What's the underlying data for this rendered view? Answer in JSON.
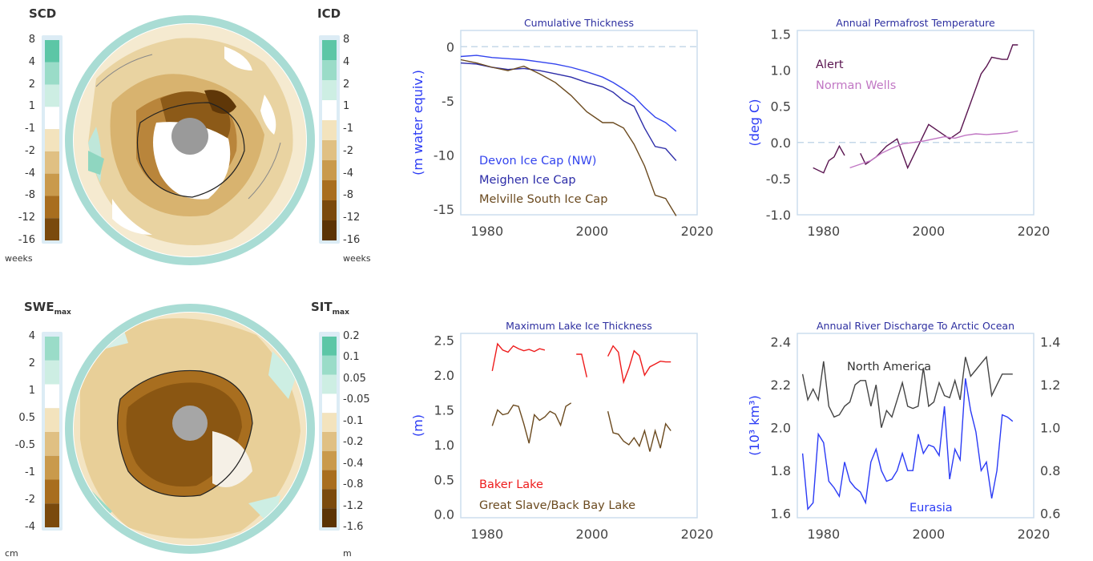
{
  "maps": {
    "top": {
      "left_title": "SCD",
      "right_title": "ICD",
      "left_unit": "weeks",
      "right_unit": "weeks",
      "left_ticks": [
        "8",
        "4",
        "2",
        "1",
        "-1",
        "-2",
        "-4",
        "-8",
        "-12",
        "-16"
      ],
      "right_ticks": [
        "8",
        "4",
        "2",
        "1",
        "-1",
        "-2",
        "-4",
        "-8",
        "-12",
        "-16"
      ]
    },
    "bottom": {
      "left_title_main": "SWE",
      "left_title_sub": "max",
      "right_title_main": "SIT",
      "right_title_sub": "max",
      "left_unit": "cm",
      "right_unit": "m",
      "left_ticks": [
        "4",
        "2",
        "1",
        "0.5",
        "-0.5",
        "-1",
        "-2",
        "-4"
      ],
      "right_ticks": [
        "0.2",
        "0.1",
        "0.05",
        "-0.05",
        "-0.1",
        "-0.2",
        "-0.4",
        "-0.8",
        "-1.2",
        "-1.6"
      ]
    },
    "colors": {
      "snow_scale": [
        "#5cc6a6",
        "#9adcc8",
        "#cdeee3",
        "#ffffff",
        "#f3e3bd",
        "#e0c083",
        "#c99a4c",
        "#a86e1f",
        "#7a4a0d"
      ],
      "ice_scale": [
        "#5cc6a6",
        "#9adcc8",
        "#cdeee3",
        "#ffffff",
        "#f3e3bd",
        "#e0c083",
        "#c99a4c",
        "#a86e1f",
        "#7a4a0d",
        "#5a3305"
      ],
      "ring": "#a9dcd4",
      "pole": "#9a9a9a"
    }
  },
  "chart_data": [
    {
      "type": "line",
      "title": "Cumulative Thickness",
      "xlabel": "",
      "ylabel": "(m water equiv.)",
      "xlim": [
        1975,
        2020
      ],
      "ylim": [
        -15.5,
        1.5
      ],
      "xticks": [
        1980,
        2000,
        2020
      ],
      "yticks": [
        0,
        -5,
        -10,
        -15
      ],
      "zero_line": true,
      "series": [
        {
          "name": "Devon Ice Cap (NW)",
          "color": "#3344ee",
          "x": [
            1975,
            1978,
            1981,
            1984,
            1987,
            1990,
            1993,
            1996,
            1999,
            2002,
            2004,
            2006,
            2008,
            2010,
            2012,
            2014,
            2016
          ],
          "y": [
            -0.9,
            -0.8,
            -1.0,
            -1.1,
            -1.2,
            -1.4,
            -1.6,
            -1.9,
            -2.3,
            -2.8,
            -3.3,
            -3.9,
            -4.6,
            -5.6,
            -6.5,
            -7.0,
            -7.8
          ]
        },
        {
          "name": "Meighen Ice Cap",
          "color": "#2c2ca8",
          "x": [
            1975,
            1978,
            1981,
            1984,
            1987,
            1990,
            1993,
            1996,
            1999,
            2002,
            2004,
            2006,
            2008,
            2010,
            2012,
            2014,
            2016
          ],
          "y": [
            -1.5,
            -1.6,
            -1.9,
            -2.1,
            -2.0,
            -2.2,
            -2.5,
            -2.8,
            -3.3,
            -3.7,
            -4.2,
            -5.0,
            -5.5,
            -7.5,
            -9.2,
            -9.4,
            -10.5
          ]
        },
        {
          "name": "Melville South Ice Cap",
          "color": "#6b4a1f",
          "x": [
            1975,
            1978,
            1981,
            1984,
            1987,
            1990,
            1993,
            1996,
            1999,
            2002,
            2004,
            2006,
            2008,
            2010,
            2012,
            2014,
            2016
          ],
          "y": [
            -1.2,
            -1.5,
            -1.9,
            -2.2,
            -1.8,
            -2.5,
            -3.3,
            -4.5,
            -6.0,
            -7.0,
            -7.0,
            -7.5,
            -9.0,
            -11.0,
            -13.7,
            -14.0,
            -15.6
          ]
        }
      ]
    },
    {
      "type": "line",
      "title": "Annual Permafrost Temperature",
      "xlabel": "",
      "ylabel": "(deg C)",
      "xlim": [
        1975,
        2020
      ],
      "ylim": [
        -1.0,
        1.55
      ],
      "xticks": [
        1980,
        2000,
        2020
      ],
      "yticks": [
        1.5,
        1.0,
        0.5,
        0.0,
        -0.5,
        -1.0
      ],
      "zero_line": true,
      "series": [
        {
          "name": "Alert",
          "color": "#5a1550",
          "segments": [
            {
              "x": [
                1978,
                1980,
                1981,
                1982,
                1983,
                1984
              ],
              "y": [
                -0.35,
                -0.42,
                -0.25,
                -0.2,
                -0.05,
                -0.18
              ]
            },
            {
              "x": [
                1987,
                1988,
                1990,
                1992,
                1994,
                1996,
                1998,
                2000,
                2002,
                2004,
                2006,
                2008,
                2010,
                2011,
                2012,
                2014,
                2015,
                2016,
                2017
              ],
              "y": [
                -0.15,
                -0.3,
                -0.2,
                -0.05,
                0.05,
                -0.35,
                -0.05,
                0.25,
                0.15,
                0.05,
                0.15,
                0.55,
                0.95,
                1.05,
                1.18,
                1.15,
                1.15,
                1.35,
                1.35
              ]
            }
          ]
        },
        {
          "name": "Norman Wells",
          "color": "#c177c4",
          "segments": [
            {
              "x": [
                1985,
                1987,
                1989,
                1991,
                1993,
                1995,
                1997,
                1999,
                2001,
                2003,
                2005,
                2007,
                2009,
                2011,
                2013,
                2015,
                2017
              ],
              "y": [
                -0.35,
                -0.3,
                -0.25,
                -0.15,
                -0.08,
                -0.02,
                0.0,
                0.02,
                0.05,
                0.08,
                0.06,
                0.1,
                0.12,
                0.11,
                0.12,
                0.13,
                0.16
              ]
            }
          ]
        }
      ]
    },
    {
      "type": "line",
      "title": "Maximum Lake Ice Thickness",
      "xlabel": "",
      "ylabel": "(m)",
      "xlim": [
        1975,
        2020
      ],
      "ylim": [
        -0.05,
        2.6
      ],
      "xticks": [
        1980,
        2000,
        2020
      ],
      "yticks": [
        0.0,
        0.5,
        1.0,
        1.5,
        2.0,
        2.5
      ],
      "series": [
        {
          "name": "Baker Lake",
          "color": "#ee1c1c",
          "segments": [
            {
              "x": [
                1981,
                1982,
                1983,
                1984,
                1985,
                1986,
                1987,
                1988,
                1989,
                1990,
                1991
              ],
              "y": [
                2.06,
                2.45,
                2.36,
                2.33,
                2.42,
                2.38,
                2.35,
                2.37,
                2.34,
                2.38,
                2.36
              ]
            },
            {
              "x": [
                1997,
                1998,
                1999
              ],
              "y": [
                2.3,
                2.3,
                1.97
              ]
            },
            {
              "x": [
                2003,
                2004,
                2005,
                2006,
                2007,
                2008,
                2009,
                2010,
                2011,
                2012,
                2013,
                2014,
                2015
              ],
              "y": [
                2.27,
                2.42,
                2.33,
                1.9,
                2.1,
                2.35,
                2.28,
                2.0,
                2.12,
                2.16,
                2.2,
                2.19,
                2.19
              ]
            }
          ]
        },
        {
          "name": "Great Slave/Back Bay Lake",
          "color": "#6b4a1f",
          "segments": [
            {
              "x": [
                1981,
                1982,
                1983,
                1984,
                1985,
                1986,
                1987,
                1988,
                1989,
                1990,
                1991,
                1992,
                1993,
                1994,
                1995,
                1996
              ],
              "y": [
                1.27,
                1.5,
                1.43,
                1.45,
                1.57,
                1.55,
                1.3,
                1.02,
                1.43,
                1.35,
                1.4,
                1.48,
                1.44,
                1.28,
                1.55,
                1.6
              ]
            },
            {
              "x": [
                2003,
                2004,
                2005,
                2006,
                2007,
                2008,
                2009,
                2010,
                2011,
                2012,
                2013,
                2014,
                2015
              ],
              "y": [
                1.48,
                1.17,
                1.15,
                1.05,
                1.0,
                1.1,
                0.98,
                1.2,
                0.9,
                1.2,
                0.95,
                1.3,
                1.2
              ]
            }
          ]
        }
      ]
    },
    {
      "type": "line",
      "title": "Annual River Discharge To Arctic Ocean",
      "xlabel": "",
      "ylabel": "(10³ km³)",
      "xlim": [
        1975,
        2020
      ],
      "ylim": [
        1.58,
        2.44
      ],
      "y2lim": [
        0.58,
        1.44
      ],
      "xticks": [
        1980,
        2000,
        2020
      ],
      "yticks": [
        1.6,
        1.8,
        2.0,
        2.2,
        2.4
      ],
      "y2ticks": [
        0.6,
        0.8,
        1.0,
        1.2,
        1.4
      ],
      "series": [
        {
          "name": "North America",
          "color": "#444444",
          "axis": "right",
          "x": [
            1976,
            1977,
            1978,
            1979,
            1980,
            1981,
            1982,
            1983,
            1984,
            1985,
            1986,
            1987,
            1988,
            1989,
            1990,
            1991,
            1992,
            1993,
            1994,
            1995,
            1996,
            1997,
            1998,
            1999,
            2000,
            2001,
            2002,
            2003,
            2004,
            2005,
            2006,
            2007,
            2008,
            2009,
            2010,
            2011,
            2012,
            2013,
            2014,
            2015,
            2016
          ],
          "y": [
            1.25,
            1.13,
            1.18,
            1.13,
            1.31,
            1.1,
            1.05,
            1.06,
            1.1,
            1.12,
            1.2,
            1.22,
            1.22,
            1.1,
            1.2,
            1.0,
            1.08,
            1.05,
            1.13,
            1.21,
            1.1,
            1.09,
            1.1,
            1.28,
            1.1,
            1.12,
            1.21,
            1.15,
            1.14,
            1.22,
            1.13,
            1.33,
            1.24,
            1.27,
            1.3,
            1.33,
            1.15,
            1.2,
            1.25,
            1.25,
            1.25
          ]
        },
        {
          "name": "Eurasia",
          "color": "#2b3bf5",
          "axis": "left",
          "x": [
            1976,
            1977,
            1978,
            1979,
            1980,
            1981,
            1982,
            1983,
            1984,
            1985,
            1986,
            1987,
            1988,
            1989,
            1990,
            1991,
            1992,
            1993,
            1994,
            1995,
            1996,
            1997,
            1998,
            1999,
            2000,
            2001,
            2002,
            2003,
            2004,
            2005,
            2006,
            2007,
            2008,
            2009,
            2010,
            2011,
            2012,
            2013,
            2014,
            2015,
            2016
          ],
          "y": [
            1.88,
            1.62,
            1.65,
            1.97,
            1.93,
            1.75,
            1.72,
            1.68,
            1.84,
            1.75,
            1.72,
            1.7,
            1.65,
            1.84,
            1.9,
            1.8,
            1.75,
            1.76,
            1.8,
            1.88,
            1.8,
            1.8,
            1.97,
            1.88,
            1.92,
            1.91,
            1.87,
            2.1,
            1.76,
            1.9,
            1.85,
            2.23,
            2.08,
            1.98,
            1.8,
            1.84,
            1.67,
            1.8,
            2.06,
            2.05,
            2.03
          ]
        }
      ]
    }
  ]
}
